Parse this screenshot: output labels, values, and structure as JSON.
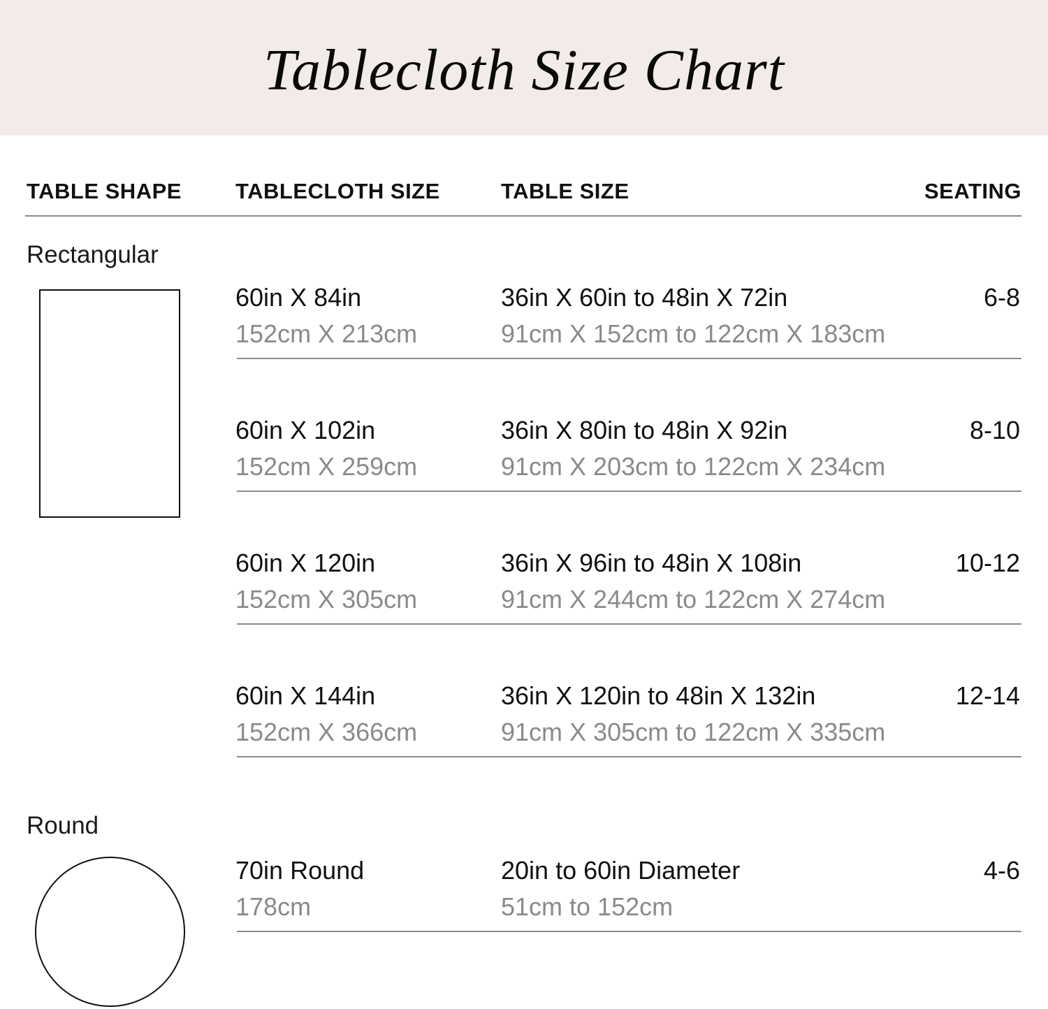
{
  "title": "Tablecloth Size Chart",
  "colors": {
    "header_background": "#f3ebe8",
    "primary_text": "#111111",
    "secondary_text": "#8a8a8a",
    "divider": "#8c8c8c"
  },
  "headers": {
    "shape": "TABLE SHAPE",
    "tablecloth_size": "TABLECLOTH SIZE",
    "table_size": "TABLE SIZE",
    "seating": "SEATING"
  },
  "groups": [
    {
      "shape": "Rectangular",
      "icon": "rectangle-icon",
      "rows": [
        {
          "cloth_in": "60in X 84in",
          "cloth_cm": "152cm X 213cm",
          "table_in": "36in X 60in to 48in X 72in",
          "table_cm": "91cm X 152cm to 122cm X 183cm",
          "seating": "6-8"
        },
        {
          "cloth_in": "60in X 102in",
          "cloth_cm": "152cm X 259cm",
          "table_in": "36in X 80in to 48in X 92in",
          "table_cm": "91cm X 203cm to 122cm X 234cm",
          "seating": "8-10"
        },
        {
          "cloth_in": "60in X 120in",
          "cloth_cm": "152cm X 305cm",
          "table_in": "36in X 96in to 48in X 108in",
          "table_cm": "91cm X 244cm to 122cm X 274cm",
          "seating": "10-12"
        },
        {
          "cloth_in": "60in X 144in",
          "cloth_cm": "152cm X 366cm",
          "table_in": "36in X 120in to 48in X 132in",
          "table_cm": "91cm X 305cm to 122cm X 335cm",
          "seating": "12-14"
        }
      ]
    },
    {
      "shape": "Round",
      "icon": "circle-icon",
      "rows": [
        {
          "cloth_in": "70in Round",
          "cloth_cm": "178cm",
          "table_in": "20in to 60in Diameter",
          "table_cm": "51cm to 152cm",
          "seating": "4-6"
        }
      ]
    }
  ]
}
